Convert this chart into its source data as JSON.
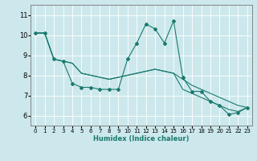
{
  "title": "",
  "xlabel": "Humidex (Indice chaleur)",
  "background_color": "#cce8ec",
  "line_color": "#1a7a6e",
  "grid_color": "#ffffff",
  "xlim": [
    -0.5,
    23.5
  ],
  "ylim": [
    5.5,
    11.5
  ],
  "xticks": [
    0,
    1,
    2,
    3,
    4,
    5,
    6,
    7,
    8,
    9,
    10,
    11,
    12,
    13,
    14,
    15,
    16,
    17,
    18,
    19,
    20,
    21,
    22,
    23
  ],
  "yticks": [
    6,
    7,
    8,
    9,
    10,
    11
  ],
  "line1_x": [
    0,
    1,
    2,
    3,
    4,
    5,
    6,
    7,
    8,
    9,
    10,
    11,
    12,
    13,
    14,
    15,
    16,
    17,
    18,
    19,
    20,
    21,
    22,
    23
  ],
  "line1_y": [
    10.1,
    10.1,
    8.8,
    8.7,
    7.6,
    7.4,
    7.4,
    7.3,
    7.3,
    7.3,
    8.8,
    9.6,
    10.55,
    10.3,
    9.6,
    10.7,
    7.9,
    7.2,
    7.2,
    6.7,
    6.5,
    6.05,
    6.15,
    6.4
  ],
  "line2_x": [
    0,
    1,
    2,
    3,
    4,
    5,
    6,
    7,
    8,
    9,
    10,
    11,
    12,
    13,
    14,
    15,
    16,
    17,
    18,
    19,
    20,
    21,
    22,
    23
  ],
  "line2_y": [
    10.1,
    10.1,
    8.8,
    8.7,
    8.6,
    8.1,
    8.0,
    7.9,
    7.8,
    7.9,
    8.0,
    8.1,
    8.2,
    8.3,
    8.2,
    8.1,
    7.8,
    7.5,
    7.3,
    7.1,
    6.9,
    6.7,
    6.5,
    6.4
  ],
  "line3_x": [
    0,
    1,
    2,
    3,
    4,
    5,
    6,
    7,
    8,
    9,
    10,
    11,
    12,
    13,
    14,
    15,
    16,
    17,
    18,
    19,
    20,
    21,
    22,
    23
  ],
  "line3_y": [
    10.1,
    10.1,
    8.8,
    8.7,
    8.6,
    8.1,
    8.0,
    7.9,
    7.8,
    7.9,
    8.0,
    8.1,
    8.2,
    8.3,
    8.2,
    8.1,
    7.3,
    7.1,
    6.9,
    6.7,
    6.5,
    6.3,
    6.2,
    6.4
  ],
  "xlabel_fontsize": 6,
  "tick_fontsize_x": 5,
  "tick_fontsize_y": 6
}
